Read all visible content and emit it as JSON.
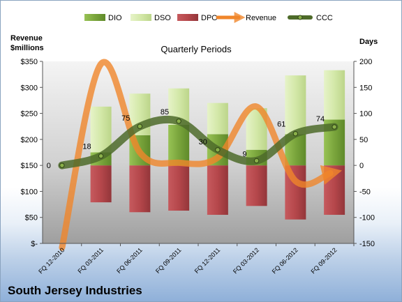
{
  "chart_data": {
    "type": "bar",
    "title": "Quarterly Periods",
    "company": "South Jersey Industries",
    "y_left_label": [
      "Revenue",
      "$millions"
    ],
    "y_right_label": "Days",
    "y_left_ticks": [
      "$-",
      "$50",
      "$100",
      "$150",
      "$200",
      "$250",
      "$300",
      "$350"
    ],
    "y_left_range": [
      0,
      350
    ],
    "y_right_ticks": [
      "-150",
      "-100",
      "-50",
      "0",
      "50",
      "100",
      "150",
      "200"
    ],
    "y_right_range": [
      -150,
      200
    ],
    "categories": [
      "FQ 12-2010",
      "FQ 03-2011",
      "FQ 06-2011",
      "FQ 09-2011",
      "FQ 12-2011",
      "FQ 03-2012",
      "FQ 06-2012",
      "FQ 09-2012"
    ],
    "series": [
      {
        "name": "DIO",
        "kind": "stacked-bar",
        "color": "#7aa53c",
        "values": [
          0,
          25,
          58,
          78,
          60,
          30,
          60,
          88
        ]
      },
      {
        "name": "DSO",
        "kind": "stacked-bar",
        "color": "#d3e8a8",
        "values": [
          0,
          88,
          80,
          70,
          60,
          80,
          113,
          95
        ]
      },
      {
        "name": "DPO",
        "kind": "stacked-bar-negative",
        "color": "#b5474b",
        "values": [
          0,
          -71,
          -90,
          -87,
          -95,
          -78,
          -104,
          -95
        ]
      },
      {
        "name": "Revenue",
        "kind": "line",
        "axis": "left",
        "color": "#f0862a",
        "values": [
          0,
          345,
          175,
          155,
          165,
          263,
          120,
          135
        ]
      },
      {
        "name": "CCC",
        "kind": "line",
        "axis": "right",
        "color": "#4e6b2a",
        "values": [
          0,
          18,
          75,
          85,
          30,
          9,
          61,
          74
        ]
      }
    ],
    "ccc_labels": [
      "0",
      "18",
      "75",
      "85",
      "30",
      "9",
      "61",
      "74"
    ],
    "legend_placement": "top",
    "grid": false
  }
}
